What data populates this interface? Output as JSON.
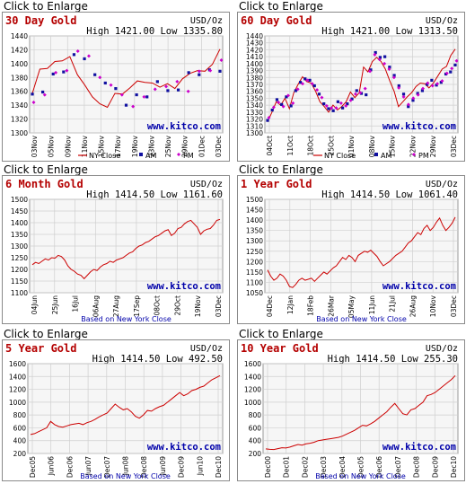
{
  "page": {
    "enlarge_label": "Click to Enlarge"
  },
  "colors": {
    "title": "#b40000",
    "line": "#cc0000",
    "am": "#1010a0",
    "pm": "#cc00cc",
    "grid": "#cfcfcf",
    "plot_bg": "#f6f6f6",
    "watermark": "#0000aa",
    "text": "#000000"
  },
  "charts": [
    {
      "title": "30 Day Gold",
      "unit": "USD/Oz",
      "high_low": "High 1421.00 Low 1335.80",
      "watermark": "www.kitco.com",
      "legend": [
        {
          "label": "NY Close",
          "marker": "line"
        },
        {
          "label": "AM",
          "marker": "square"
        },
        {
          "label": "PM",
          "marker": "diamond"
        }
      ],
      "based_on": ""
    },
    {
      "title": "60 Day Gold",
      "unit": "USD/Oz",
      "high_low": "High 1421.00 Low 1313.50",
      "watermark": "www.kitco.com",
      "legend": [
        {
          "label": "NY Close",
          "marker": "line"
        },
        {
          "label": "AM",
          "marker": "square"
        },
        {
          "label": "PM",
          "marker": "diamond"
        }
      ],
      "based_on": ""
    },
    {
      "title": "6 Month Gold",
      "unit": "USD/Oz",
      "high_low": "High 1414.50 Low 1161.60",
      "watermark": "www.kitco.com",
      "legend": [],
      "based_on": "Based on New York Close"
    },
    {
      "title": "1 Year Gold",
      "unit": "USD/Oz",
      "high_low": "High 1414.50 Low 1061.40",
      "watermark": "www.kitco.com",
      "legend": [],
      "based_on": "Based on New York Close"
    },
    {
      "title": "5 Year Gold",
      "unit": "USD/Oz",
      "high_low": "High 1414.50 Low 492.50",
      "watermark": "www.kitco.com",
      "legend": [],
      "based_on": "Based on New York Close"
    },
    {
      "title": "10 Year Gold",
      "unit": "USD/Oz",
      "high_low": "High 1414.50 Low 255.30",
      "watermark": "www.kitco.com",
      "legend": [],
      "based_on": "Based on New York Close"
    }
  ],
  "chart_data": [
    {
      "type": "line",
      "title": "30 Day Gold",
      "ylabel": "USD/Oz",
      "yticks": [
        1300,
        1320,
        1340,
        1360,
        1380,
        1400,
        1420,
        1440
      ],
      "ylim": [
        1300,
        1440
      ],
      "xticks": [
        "03Nov",
        "05Nov",
        "09Nov",
        "11Nov",
        "15Nov",
        "17Nov",
        "19Nov",
        "23Nov",
        "25Nov",
        "29Nov",
        "01Dec",
        "03Dec"
      ],
      "series": [
        {
          "name": "NY Close",
          "style": "line",
          "values": [
            1357,
            1392,
            1393,
            1403,
            1404,
            1410,
            1384,
            1369,
            1352,
            1342,
            1337,
            1357,
            1356,
            1365,
            1375,
            1373,
            1372,
            1366,
            1371,
            1364,
            1378,
            1386,
            1390,
            1389,
            1399,
            1421
          ]
        },
        {
          "name": "AM",
          "style": "square",
          "values": [
            1356,
            1359,
            1385,
            1388,
            1413,
            1407,
            1384,
            1372,
            1364,
            1340,
            1355,
            1352,
            1374,
            1361,
            1362,
            1387,
            1384,
            1391,
            1389
          ]
        },
        {
          "name": "PM",
          "style": "diamond",
          "values": [
            1344,
            1355,
            1387,
            1390,
            1418,
            1411,
            1380,
            1369,
            1355,
            1338,
            1352,
            1363,
            1367,
            1374,
            1360,
            1389,
            1390,
            1405
          ]
        }
      ]
    },
    {
      "type": "line",
      "title": "60 Day Gold",
      "ylabel": "USD/Oz",
      "yticks": [
        1300,
        1310,
        1320,
        1330,
        1340,
        1350,
        1360,
        1370,
        1380,
        1390,
        1400,
        1410,
        1420,
        1430,
        1440
      ],
      "ylim": [
        1300,
        1440
      ],
      "xticks": [
        "04Oct",
        "11Oct",
        "18Oct",
        "25Oct",
        "01Nov",
        "08Nov",
        "15Nov",
        "22Nov",
        "29Nov",
        "03Dec"
      ],
      "series": [
        {
          "name": "NY Close",
          "style": "line",
          "values": [
            1316,
            1330,
            1345,
            1340,
            1350,
            1335,
            1358,
            1370,
            1381,
            1374,
            1372,
            1360,
            1345,
            1338,
            1330,
            1340,
            1333,
            1338,
            1345,
            1359,
            1351,
            1358,
            1395,
            1388,
            1403,
            1409,
            1403,
            1392,
            1375,
            1360,
            1338,
            1345,
            1352,
            1358,
            1367,
            1372,
            1371,
            1365,
            1372,
            1382,
            1392,
            1396,
            1412,
            1421
          ]
        },
        {
          "name": "AM",
          "style": "square",
          "values": [
            1318,
            1333,
            1348,
            1341,
            1352,
            1339,
            1361,
            1373,
            1378,
            1376,
            1368,
            1356,
            1342,
            1335,
            1332,
            1345,
            1336,
            1342,
            1349,
            1361,
            1357,
            1355,
            1391,
            1416,
            1409,
            1410,
            1395,
            1383,
            1368,
            1356,
            1338,
            1347,
            1357,
            1361,
            1370,
            1376,
            1369,
            1373,
            1385,
            1388,
            1398
          ]
        },
        {
          "name": "PM",
          "style": "diamond",
          "values": [
            1322,
            1337,
            1344,
            1338,
            1354,
            1343,
            1363,
            1371,
            1376,
            1371,
            1362,
            1351,
            1339,
            1336,
            1336,
            1343,
            1339,
            1347,
            1356,
            1358,
            1364,
            1389,
            1413,
            1406,
            1400,
            1392,
            1380,
            1365,
            1352,
            1341,
            1350,
            1355,
            1364,
            1372,
            1368,
            1371,
            1375,
            1386,
            1393,
            1404
          ]
        }
      ]
    },
    {
      "type": "line",
      "title": "6 Month Gold",
      "ylabel": "USD/Oz",
      "yticks": [
        1100,
        1150,
        1200,
        1250,
        1300,
        1350,
        1400,
        1450,
        1500
      ],
      "ylim": [
        1100,
        1500
      ],
      "xticks": [
        "04Jun",
        "25Jun",
        "16Jul",
        "06Aug",
        "27Aug",
        "17Sep",
        "08Oct",
        "29Oct",
        "19Nov",
        "03Dec"
      ],
      "series": [
        {
          "name": "NY Close",
          "values": [
            1220,
            1230,
            1225,
            1235,
            1245,
            1240,
            1250,
            1248,
            1260,
            1255,
            1240,
            1215,
            1200,
            1192,
            1180,
            1175,
            1160,
            1175,
            1190,
            1200,
            1195,
            1210,
            1220,
            1225,
            1235,
            1230,
            1240,
            1245,
            1250,
            1260,
            1270,
            1275,
            1290,
            1300,
            1305,
            1315,
            1320,
            1330,
            1340,
            1345,
            1355,
            1365,
            1370,
            1345,
            1355,
            1375,
            1380,
            1395,
            1405,
            1410,
            1395,
            1380,
            1350,
            1365,
            1372,
            1375,
            1390,
            1410,
            1414
          ]
        }
      ]
    },
    {
      "type": "line",
      "title": "1 Year Gold",
      "ylabel": "USD/Oz",
      "yticks": [
        1050,
        1100,
        1150,
        1200,
        1250,
        1300,
        1350,
        1400,
        1450,
        1500
      ],
      "ylim": [
        1050,
        1500
      ],
      "xticks": [
        "04Dec",
        "12Jan",
        "18Feb",
        "26Mar",
        "05May",
        "11Jun",
        "21Jul",
        "26Aug",
        "10Nov",
        "03Dec"
      ],
      "series": [
        {
          "name": "NY Close",
          "values": [
            1160,
            1130,
            1110,
            1120,
            1140,
            1130,
            1110,
            1080,
            1075,
            1090,
            1110,
            1120,
            1110,
            1115,
            1120,
            1105,
            1120,
            1135,
            1150,
            1140,
            1155,
            1170,
            1180,
            1200,
            1220,
            1210,
            1230,
            1220,
            1200,
            1230,
            1240,
            1250,
            1245,
            1255,
            1240,
            1225,
            1200,
            1180,
            1190,
            1200,
            1215,
            1230,
            1240,
            1250,
            1270,
            1290,
            1300,
            1320,
            1340,
            1330,
            1360,
            1375,
            1350,
            1365,
            1390,
            1410,
            1375,
            1350,
            1365,
            1385,
            1414
          ]
        }
      ]
    },
    {
      "type": "line",
      "title": "5 Year Gold",
      "ylabel": "USD/Oz",
      "yticks": [
        200,
        400,
        600,
        800,
        1000,
        1200,
        1400,
        1600
      ],
      "ylim": [
        200,
        1600
      ],
      "xticks": [
        "Dec05",
        "Jun06",
        "Dec06",
        "Jun07",
        "Dec07",
        "Jun08",
        "Dec08",
        "Jun09",
        "Dec09",
        "Jun10",
        "Dec10"
      ],
      "series": [
        {
          "name": "NY Close",
          "values": [
            495,
            510,
            540,
            570,
            600,
            700,
            650,
            620,
            610,
            630,
            650,
            660,
            670,
            650,
            680,
            700,
            730,
            770,
            800,
            830,
            900,
            970,
            920,
            880,
            900,
            850,
            780,
            750,
            800,
            870,
            860,
            900,
            930,
            950,
            1000,
            1050,
            1100,
            1150,
            1100,
            1130,
            1180,
            1200,
            1230,
            1250,
            1300,
            1350,
            1380,
            1414
          ]
        }
      ]
    },
    {
      "type": "line",
      "title": "10 Year Gold",
      "ylabel": "USD/Oz",
      "yticks": [
        200,
        400,
        600,
        800,
        1000,
        1200,
        1400,
        1600
      ],
      "ylim": [
        200,
        1600
      ],
      "xticks": [
        "Dec00",
        "Dec01",
        "Dec02",
        "Dec03",
        "Dec04",
        "Dec05",
        "Dec06",
        "Dec07",
        "Dec08",
        "Dec09",
        "Dec10"
      ],
      "series": [
        {
          "name": "NY Close",
          "values": [
            272,
            265,
            262,
            275,
            290,
            285,
            300,
            320,
            340,
            330,
            350,
            360,
            375,
            400,
            410,
            420,
            430,
            440,
            450,
            470,
            500,
            530,
            560,
            600,
            640,
            630,
            660,
            700,
            750,
            800,
            850,
            920,
            980,
            900,
            820,
            800,
            880,
            900,
            950,
            1000,
            1100,
            1120,
            1150,
            1200,
            1250,
            1300,
            1350,
            1414
          ]
        }
      ]
    }
  ]
}
